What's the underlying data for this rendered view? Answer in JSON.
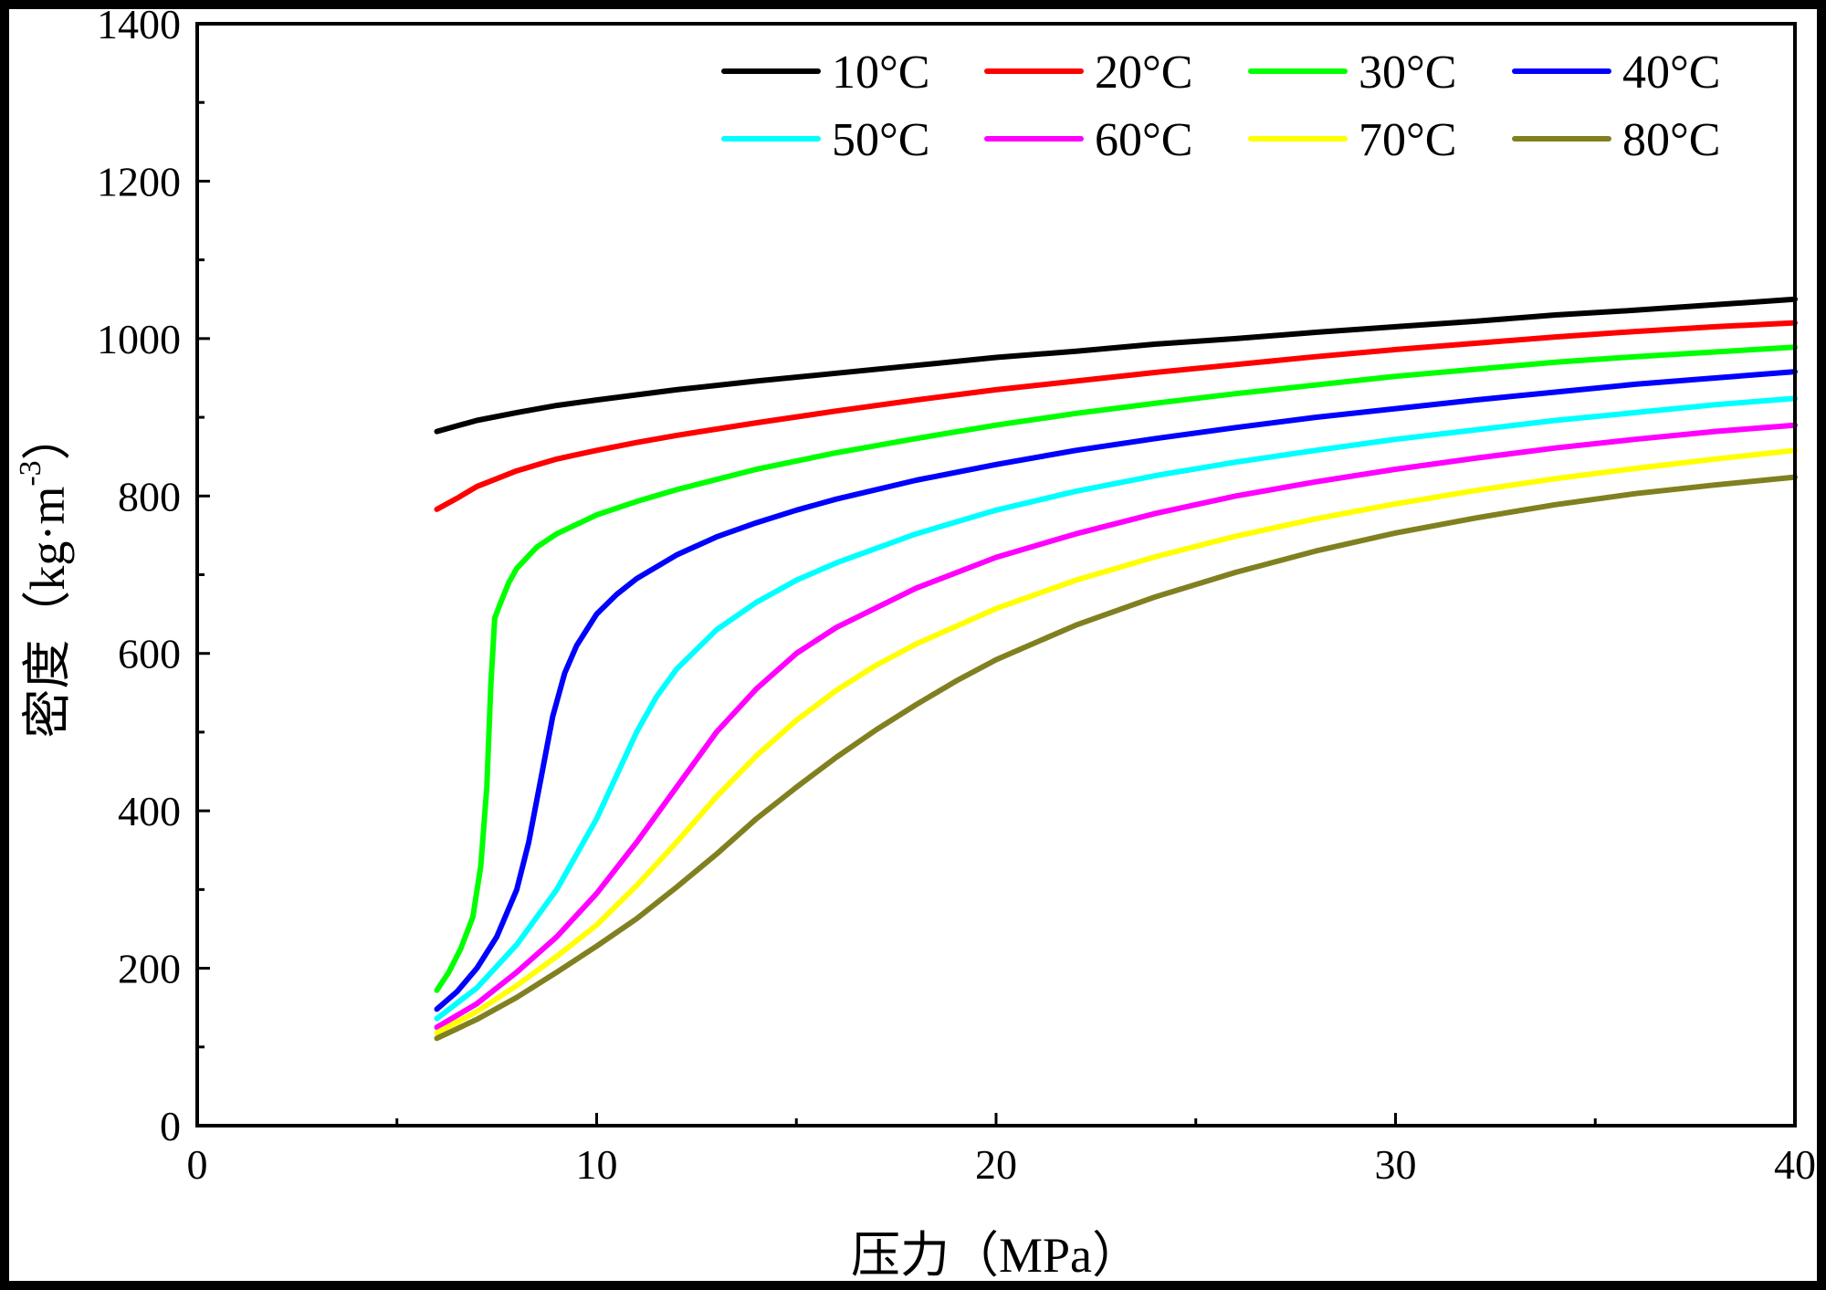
{
  "chart_data": {
    "type": "line",
    "title": "",
    "xlabel": "压力（MPa）",
    "ylabel_main": "密度（kg·m",
    "ylabel_sup": "-3",
    "ylabel_close": "）",
    "xlim": [
      0,
      40
    ],
    "ylim": [
      0,
      1400
    ],
    "xticks": [
      0,
      10,
      20,
      30,
      40
    ],
    "yticks": [
      0,
      200,
      400,
      600,
      800,
      1000,
      1200,
      1400
    ],
    "x_minor_step": 5,
    "y_minor_step": 100,
    "grid": false,
    "legend_position": "top-right",
    "series": [
      {
        "name": "10°C",
        "color": "#000000",
        "x": [
          6,
          7,
          8,
          9,
          10,
          12,
          14,
          16,
          18,
          20,
          22,
          24,
          26,
          28,
          30,
          32,
          34,
          36,
          38,
          40
        ],
        "y": [
          882,
          896,
          906,
          915,
          922,
          935,
          946,
          956,
          966,
          976,
          984,
          993,
          1000,
          1008,
          1015,
          1022,
          1030,
          1036,
          1043,
          1050
        ]
      },
      {
        "name": "20°C",
        "color": "#ff0000",
        "x": [
          6,
          6.5,
          7,
          8,
          9,
          10,
          11,
          12,
          14,
          16,
          18,
          20,
          22,
          24,
          26,
          28,
          30,
          32,
          34,
          36,
          38,
          40
        ],
        "y": [
          783,
          797,
          812,
          832,
          847,
          858,
          868,
          877,
          893,
          908,
          922,
          935,
          946,
          957,
          967,
          977,
          986,
          994,
          1002,
          1009,
          1015,
          1020
        ]
      },
      {
        "name": "30°C",
        "color": "#00ff00",
        "x": [
          6,
          6.3,
          6.6,
          6.9,
          7.1,
          7.25,
          7.35,
          7.45,
          7.6,
          7.8,
          8,
          8.5,
          9,
          10,
          11,
          12,
          14,
          16,
          18,
          20,
          22,
          24,
          26,
          28,
          30,
          32,
          34,
          36,
          38,
          40
        ],
        "y": [
          172,
          195,
          225,
          265,
          330,
          430,
          560,
          645,
          665,
          690,
          708,
          735,
          752,
          776,
          793,
          808,
          834,
          855,
          873,
          890,
          905,
          918,
          930,
          941,
          952,
          961,
          970,
          977,
          983,
          989
        ]
      },
      {
        "name": "40°C",
        "color": "#0000ff",
        "x": [
          6,
          6.5,
          7,
          7.5,
          8,
          8.3,
          8.6,
          8.9,
          9.2,
          9.5,
          10,
          10.5,
          11,
          12,
          13,
          14,
          15,
          16,
          18,
          20,
          22,
          24,
          26,
          28,
          30,
          32,
          34,
          36,
          38,
          40
        ],
        "y": [
          148,
          170,
          200,
          240,
          300,
          360,
          440,
          520,
          575,
          610,
          650,
          675,
          695,
          725,
          748,
          766,
          782,
          796,
          820,
          840,
          858,
          873,
          887,
          900,
          911,
          922,
          932,
          942,
          950,
          958
        ]
      },
      {
        "name": "50°C",
        "color": "#00ffff",
        "x": [
          6,
          7,
          8,
          9,
          10,
          10.5,
          11,
          11.5,
          12,
          13,
          14,
          15,
          16,
          18,
          20,
          22,
          24,
          26,
          28,
          30,
          32,
          34,
          36,
          38,
          40
        ],
        "y": [
          136,
          175,
          230,
          300,
          390,
          445,
          500,
          545,
          580,
          630,
          665,
          693,
          715,
          752,
          782,
          806,
          826,
          843,
          858,
          872,
          884,
          896,
          906,
          916,
          924
        ]
      },
      {
        "name": "60°C",
        "color": "#ff00ff",
        "x": [
          6,
          7,
          8,
          9,
          10,
          11,
          12,
          13,
          14,
          15,
          16,
          18,
          20,
          22,
          24,
          26,
          28,
          30,
          32,
          34,
          36,
          38,
          40
        ],
        "y": [
          125,
          155,
          195,
          240,
          295,
          360,
          430,
          500,
          555,
          600,
          633,
          683,
          722,
          752,
          778,
          800,
          818,
          834,
          848,
          861,
          872,
          882,
          890
        ]
      },
      {
        "name": "70°C",
        "color": "#ffff00",
        "x": [
          6,
          7,
          8,
          9,
          10,
          11,
          12,
          13,
          14,
          15,
          16,
          17,
          18,
          20,
          22,
          24,
          26,
          28,
          30,
          32,
          34,
          36,
          38,
          40
        ],
        "y": [
          118,
          145,
          178,
          215,
          255,
          305,
          360,
          418,
          470,
          515,
          553,
          585,
          612,
          657,
          693,
          723,
          749,
          771,
          790,
          807,
          822,
          835,
          847,
          858
        ]
      },
      {
        "name": "80°C",
        "color": "#808020",
        "x": [
          6,
          7,
          8,
          9,
          10,
          11,
          12,
          13,
          14,
          15,
          16,
          17,
          18,
          19,
          20,
          22,
          24,
          26,
          28,
          30,
          32,
          34,
          36,
          38,
          40
        ],
        "y": [
          111,
          135,
          163,
          195,
          228,
          263,
          303,
          345,
          390,
          430,
          468,
          503,
          535,
          565,
          592,
          636,
          672,
          703,
          730,
          753,
          772,
          789,
          803,
          814,
          824
        ]
      }
    ]
  }
}
